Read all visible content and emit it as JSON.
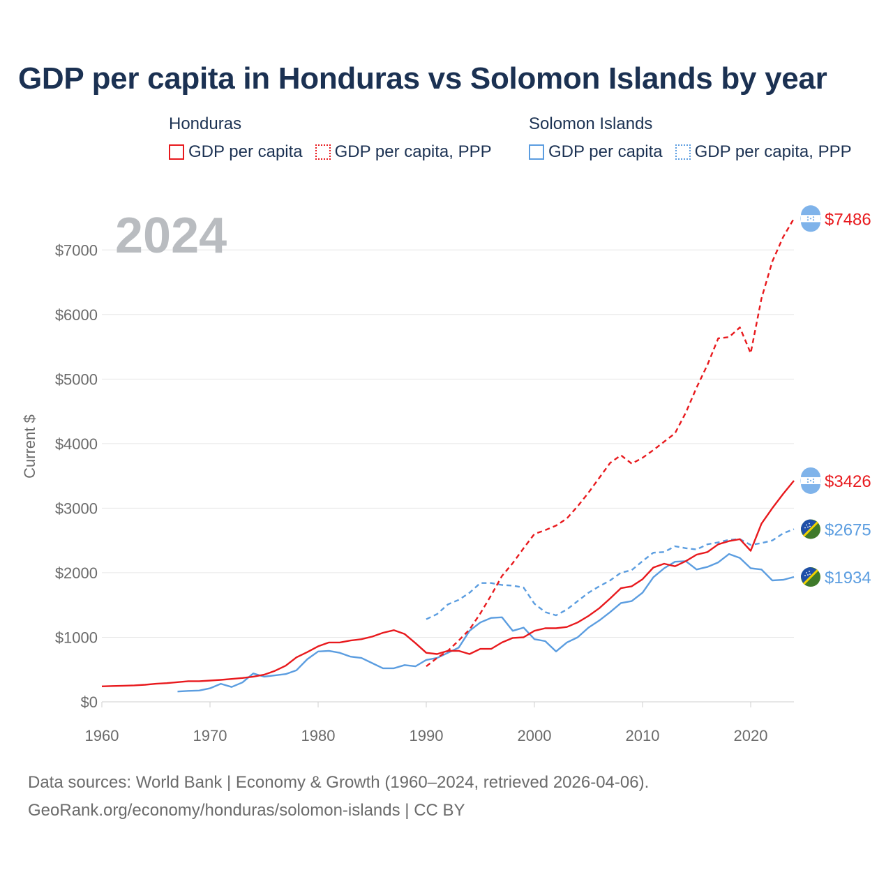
{
  "title": "GDP per capita in Honduras vs Solomon Islands by year",
  "legend": {
    "groups": [
      {
        "name": "Honduras",
        "items": [
          {
            "label": "GDP per capita",
            "style": "solid",
            "color": "#e8191d"
          },
          {
            "label": "GDP per capita, PPP",
            "style": "dotted",
            "color": "#e8191d"
          }
        ]
      },
      {
        "name": "Solomon Islands",
        "items": [
          {
            "label": "GDP per capita",
            "style": "solid",
            "color": "#5b9de0"
          },
          {
            "label": "GDP per capita, PPP",
            "style": "dotted",
            "color": "#5b9de0"
          }
        ]
      }
    ]
  },
  "year_watermark": "2024",
  "source_lines": [
    "Data sources: World Bank | Economy & Growth (1960–2024, retrieved 2026-04-06).",
    "GeoRank.org/economy/honduras/solomon-islands | CC BY"
  ],
  "colors": {
    "honduras": "#e8191d",
    "solomon": "#5b9de0",
    "grid": "#e6e6e6",
    "axis_text": "#6b6b6b",
    "watermark": "#b9bcc0"
  },
  "chart_data": {
    "type": "line",
    "title": "GDP per capita in Honduras vs Solomon Islands by year",
    "xlabel": "",
    "ylabel": "Current $",
    "xlim": [
      1960,
      2024
    ],
    "ylim": [
      0,
      7500
    ],
    "x_ticks": [
      1960,
      1970,
      1980,
      1990,
      2000,
      2010,
      2020
    ],
    "y_ticks": [
      0,
      1000,
      2000,
      3000,
      4000,
      5000,
      6000,
      7000
    ],
    "y_tick_labels": [
      "$0",
      "$1000",
      "$2000",
      "$3000",
      "$4000",
      "$5000",
      "$6000",
      "$7000"
    ],
    "series": [
      {
        "name": "Honduras GDP per capita",
        "country": "Honduras",
        "style": "solid",
        "end_label": "$3426",
        "x": [
          1960,
          1961,
          1962,
          1963,
          1964,
          1965,
          1966,
          1967,
          1968,
          1969,
          1970,
          1971,
          1972,
          1973,
          1974,
          1975,
          1976,
          1977,
          1978,
          1979,
          1980,
          1981,
          1982,
          1983,
          1984,
          1985,
          1986,
          1987,
          1988,
          1989,
          1990,
          1991,
          1992,
          1993,
          1994,
          1995,
          1996,
          1997,
          1998,
          1999,
          2000,
          2001,
          2002,
          2003,
          2004,
          2005,
          2006,
          2007,
          2008,
          2009,
          2010,
          2011,
          2012,
          2013,
          2014,
          2015,
          2016,
          2017,
          2018,
          2019,
          2020,
          2021,
          2022,
          2023,
          2024
        ],
        "values": [
          240,
          245,
          250,
          255,
          265,
          280,
          290,
          305,
          320,
          320,
          330,
          340,
          355,
          370,
          390,
          420,
          480,
          560,
          690,
          770,
          860,
          920,
          920,
          950,
          970,
          1010,
          1070,
          1110,
          1050,
          910,
          760,
          740,
          790,
          790,
          740,
          820,
          820,
          920,
          990,
          1000,
          1100,
          1140,
          1140,
          1160,
          1230,
          1330,
          1450,
          1600,
          1760,
          1790,
          1900,
          2080,
          2140,
          2100,
          2180,
          2280,
          2320,
          2440,
          2490,
          2520,
          2340,
          2760,
          3000,
          3220,
          3426
        ]
      },
      {
        "name": "Honduras GDP per capita, PPP",
        "country": "Honduras",
        "style": "dashed",
        "end_label": "$7486",
        "x": [
          1990,
          1991,
          1992,
          1993,
          1994,
          1995,
          1996,
          1997,
          1998,
          1999,
          2000,
          2001,
          2002,
          2003,
          2004,
          2005,
          2006,
          2007,
          2008,
          2009,
          2010,
          2011,
          2012,
          2013,
          2014,
          2015,
          2016,
          2017,
          2018,
          2019,
          2020,
          2021,
          2022,
          2023,
          2024
        ],
        "values": [
          550,
          680,
          790,
          950,
          1120,
          1370,
          1650,
          1950,
          2150,
          2380,
          2600,
          2660,
          2730,
          2840,
          3030,
          3240,
          3470,
          3700,
          3820,
          3690,
          3780,
          3900,
          4030,
          4160,
          4480,
          4870,
          5220,
          5630,
          5650,
          5800,
          5400,
          6250,
          6820,
          7200,
          7486
        ]
      },
      {
        "name": "Solomon Islands GDP per capita",
        "country": "Solomon Islands",
        "style": "solid",
        "end_label": "$1934",
        "x": [
          1967,
          1968,
          1969,
          1970,
          1971,
          1972,
          1973,
          1974,
          1975,
          1976,
          1977,
          1978,
          1979,
          1980,
          1981,
          1982,
          1983,
          1984,
          1985,
          1986,
          1987,
          1988,
          1989,
          1990,
          1991,
          1992,
          1993,
          1994,
          1995,
          1996,
          1997,
          1998,
          1999,
          2000,
          2001,
          2002,
          2003,
          2004,
          2005,
          2006,
          2007,
          2008,
          2009,
          2010,
          2011,
          2012,
          2013,
          2014,
          2015,
          2016,
          2017,
          2018,
          2019,
          2020,
          2021,
          2022,
          2023,
          2024
        ],
        "values": [
          160,
          170,
          175,
          210,
          280,
          230,
          300,
          440,
          390,
          410,
          430,
          490,
          660,
          780,
          790,
          760,
          700,
          680,
          600,
          520,
          520,
          570,
          550,
          650,
          680,
          760,
          840,
          1100,
          1230,
          1300,
          1310,
          1100,
          1150,
          970,
          940,
          780,
          920,
          1000,
          1150,
          1260,
          1390,
          1530,
          1560,
          1690,
          1930,
          2070,
          2170,
          2180,
          2050,
          2090,
          2160,
          2290,
          2230,
          2070,
          2050,
          1880,
          1890,
          1934
        ]
      },
      {
        "name": "Solomon Islands GDP per capita, PPP",
        "country": "Solomon Islands",
        "style": "dashed",
        "end_label": "$2675",
        "x": [
          1990,
          1991,
          1992,
          1993,
          1994,
          1995,
          1996,
          1997,
          1998,
          1999,
          2000,
          2001,
          2002,
          2003,
          2004,
          2005,
          2006,
          2007,
          2008,
          2009,
          2010,
          2011,
          2012,
          2013,
          2014,
          2015,
          2016,
          2017,
          2018,
          2019,
          2020,
          2021,
          2022,
          2023,
          2024
        ],
        "values": [
          1280,
          1360,
          1510,
          1580,
          1690,
          1840,
          1840,
          1810,
          1800,
          1770,
          1520,
          1390,
          1340,
          1430,
          1560,
          1690,
          1790,
          1880,
          2000,
          2040,
          2180,
          2310,
          2320,
          2410,
          2380,
          2360,
          2440,
          2470,
          2510,
          2520,
          2430,
          2460,
          2500,
          2610,
          2675
        ]
      }
    ]
  }
}
